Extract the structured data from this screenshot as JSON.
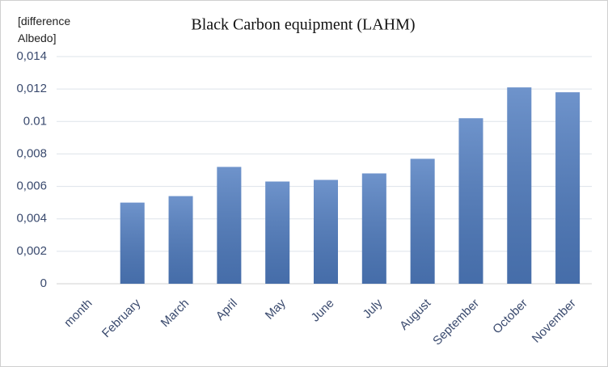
{
  "chart_data": {
    "type": "bar",
    "title": "Black Carbon equipment (LAHM)",
    "y_label": "[difference Albedo]",
    "categories": [
      "month",
      "February",
      "March",
      "April",
      "May",
      "June",
      "July",
      "August",
      "September",
      "October",
      "November"
    ],
    "values": [
      null,
      0.005,
      0.0054,
      0.0072,
      0.0063,
      0.0064,
      0.0068,
      0.0077,
      0.0102,
      0.0121,
      0.0118
    ],
    "color": "#4f7cc0",
    "ylim": [
      0,
      0.014
    ],
    "yticks": [
      0,
      {
        "value": 0.002,
        "label": "0,002"
      },
      {
        "value": 0.004,
        "label": "0,004"
      },
      {
        "value": 0.006,
        "label": "0,006"
      },
      {
        "value": 0.008,
        "label": "0,008"
      },
      0.01,
      {
        "value": 0.012,
        "label": "0,012"
      },
      {
        "value": 0.014,
        "label": "0,014"
      }
    ],
    "grid": true
  }
}
